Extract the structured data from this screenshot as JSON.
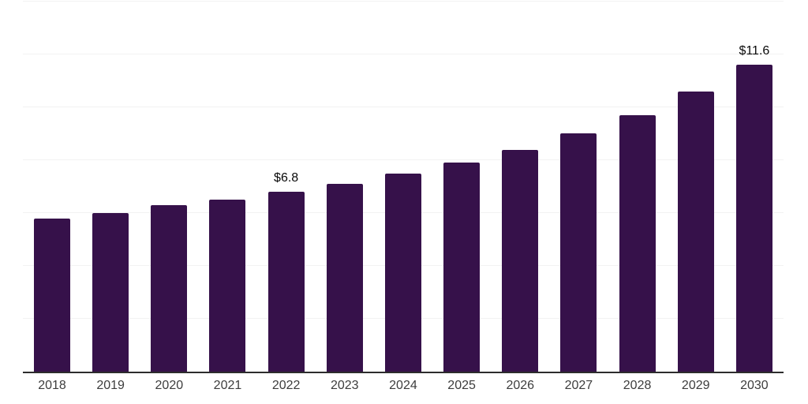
{
  "chart_data": {
    "type": "bar",
    "title": "",
    "xlabel": "",
    "ylabel": "",
    "categories": [
      "2018",
      "2019",
      "2020",
      "2021",
      "2022",
      "2023",
      "2024",
      "2025",
      "2026",
      "2027",
      "2028",
      "2029",
      "2030"
    ],
    "values": [
      5.8,
      6.0,
      6.3,
      6.5,
      6.8,
      7.1,
      7.5,
      7.9,
      8.4,
      9.0,
      9.7,
      10.6,
      11.6
    ],
    "data_labels": [
      "",
      "",
      "",
      "",
      "$6.8",
      "",
      "",
      "",
      "",
      "",
      "",
      "",
      "$11.6"
    ],
    "ylim": [
      0,
      14
    ],
    "gridline_step": 2,
    "grid": true,
    "legend": "none",
    "y_axis_ticks_visible": false
  },
  "colors": {
    "background": "#ffffff",
    "bar": "#36114a",
    "axis_line": "#2d2d2d",
    "gridline": "#f2f2f2",
    "x_tick_label": "#3d3d3d",
    "value_label": "#0a0a0a"
  }
}
